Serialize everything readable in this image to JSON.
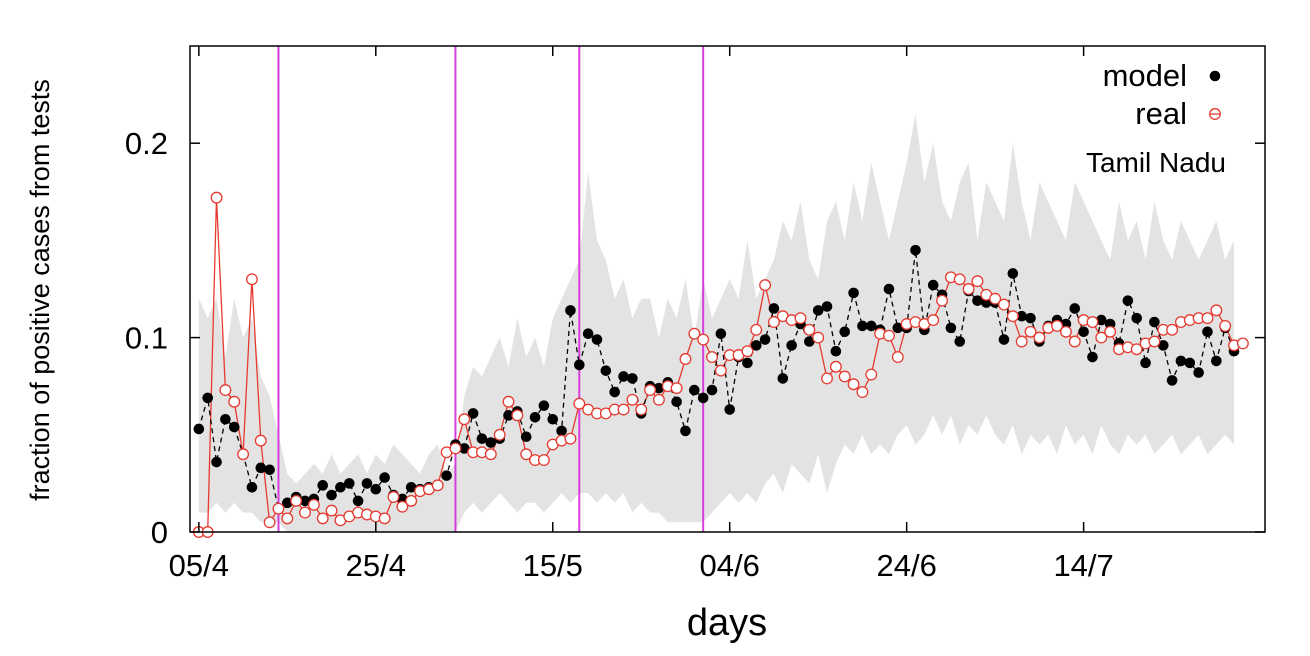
{
  "chart_data": {
    "type": "line",
    "title": "",
    "xlabel": "days",
    "ylabel": "fraction of positive cases from tests",
    "annotation": "Tamil Nadu",
    "legend_position": "top-right",
    "x_tick_labels": [
      "05/4",
      "25/4",
      "15/5",
      "04/6",
      "24/6",
      "14/7"
    ],
    "x_tick_days": [
      0,
      20,
      40,
      60,
      80,
      100
    ],
    "xlim": [
      -1,
      120.5
    ],
    "y_ticks": [
      0,
      0.1,
      0.2
    ],
    "y_tick_labels": [
      "0",
      "0.1",
      "0.2"
    ],
    "ylim": [
      0,
      0.25
    ],
    "grid": false,
    "vertical_markers": [
      9,
      29,
      43,
      57
    ],
    "marker_color": "#d63ddc",
    "band": {
      "name": "model range",
      "color": "#e3e3e3",
      "upper": [
        0.12,
        0.11,
        0.12,
        0.09,
        0.12,
        0.1,
        0.11,
        0.08,
        0.07,
        0.05,
        0.03,
        0.025,
        0.03,
        0.035,
        0.03,
        0.04,
        0.03,
        0.035,
        0.04,
        0.03,
        0.04,
        0.035,
        0.045,
        0.04,
        0.035,
        0.03,
        0.04,
        0.045,
        0.03,
        0.035,
        0.07,
        0.085,
        0.08,
        0.09,
        0.1,
        0.085,
        0.11,
        0.09,
        0.1,
        0.085,
        0.11,
        0.12,
        0.13,
        0.14,
        0.185,
        0.15,
        0.14,
        0.12,
        0.13,
        0.11,
        0.12,
        0.12,
        0.1,
        0.12,
        0.11,
        0.13,
        0.1,
        0.13,
        0.11,
        0.12,
        0.13,
        0.12,
        0.15,
        0.12,
        0.13,
        0.14,
        0.16,
        0.15,
        0.17,
        0.14,
        0.13,
        0.16,
        0.17,
        0.15,
        0.18,
        0.16,
        0.19,
        0.17,
        0.15,
        0.17,
        0.19,
        0.215,
        0.18,
        0.2,
        0.17,
        0.16,
        0.18,
        0.19,
        0.15,
        0.18,
        0.17,
        0.16,
        0.2,
        0.17,
        0.15,
        0.18,
        0.17,
        0.16,
        0.15,
        0.18,
        0.17,
        0.16,
        0.15,
        0.14,
        0.17,
        0.15,
        0.16,
        0.14,
        0.17,
        0.15,
        0.14,
        0.16,
        0.15,
        0.14,
        0.15,
        0.16,
        0.14,
        0.15
      ],
      "lower": [
        0.01,
        0.01,
        0.015,
        0.01,
        0.015,
        0.01,
        0.01,
        0.005,
        0.005,
        0.005,
        0.0,
        0.0,
        0.0,
        0.0,
        0.0,
        0.0,
        0.0,
        0.0,
        0.0,
        0.0,
        0.0,
        0.0,
        0.0,
        0.0,
        0.0,
        0.0,
        0.0,
        0.0,
        0.0,
        0.0,
        0.01,
        0.015,
        0.01,
        0.015,
        0.02,
        0.015,
        0.01,
        0.015,
        0.015,
        0.01,
        0.015,
        0.02,
        0.015,
        0.02,
        0.02,
        0.015,
        0.02,
        0.015,
        0.02,
        0.01,
        0.015,
        0.01,
        0.01,
        0.005,
        0.005,
        0.005,
        0.005,
        0.005,
        0.01,
        0.015,
        0.02,
        0.015,
        0.02,
        0.015,
        0.025,
        0.03,
        0.02,
        0.035,
        0.03,
        0.025,
        0.04,
        0.02,
        0.035,
        0.045,
        0.04,
        0.05,
        0.04,
        0.045,
        0.04,
        0.05,
        0.055,
        0.045,
        0.05,
        0.06,
        0.05,
        0.06,
        0.045,
        0.055,
        0.05,
        0.06,
        0.05,
        0.045,
        0.055,
        0.04,
        0.05,
        0.045,
        0.05,
        0.04,
        0.055,
        0.045,
        0.05,
        0.04,
        0.055,
        0.045,
        0.04,
        0.05,
        0.045,
        0.05,
        0.04,
        0.045,
        0.05,
        0.04,
        0.045,
        0.05,
        0.04,
        0.045,
        0.05,
        0.045
      ]
    },
    "series": [
      {
        "name": "model",
        "color": "#000000",
        "style": "dashed-filled-circles",
        "values": [
          0.053,
          0.069,
          0.036,
          0.058,
          0.054,
          0.04,
          0.023,
          0.033,
          0.032,
          0.012,
          0.015,
          0.018,
          0.016,
          0.017,
          0.024,
          0.019,
          0.023,
          0.025,
          0.016,
          0.025,
          0.022,
          0.028,
          0.019,
          0.017,
          0.023,
          0.022,
          0.023,
          0.024,
          0.029,
          0.045,
          0.043,
          0.061,
          0.048,
          0.046,
          0.048,
          0.06,
          0.062,
          0.049,
          0.059,
          0.065,
          0.058,
          0.052,
          0.114,
          0.086,
          0.102,
          0.099,
          0.083,
          0.072,
          0.08,
          0.079,
          0.061,
          0.075,
          0.074,
          0.077,
          0.067,
          0.052,
          0.073,
          0.069,
          0.073,
          0.102,
          0.063,
          0.09,
          0.087,
          0.096,
          0.099,
          0.115,
          0.079,
          0.096,
          0.107,
          0.098,
          0.114,
          0.116,
          0.093,
          0.103,
          0.123,
          0.106,
          0.106,
          0.104,
          0.125,
          0.105,
          0.105,
          0.145,
          0.104,
          0.127,
          0.122,
          0.105,
          0.098,
          0.124,
          0.119,
          0.118,
          0.118,
          0.099,
          0.133,
          0.111,
          0.11,
          0.098,
          0.106,
          0.109,
          0.107,
          0.115,
          0.103,
          0.09,
          0.109,
          0.107,
          0.097,
          0.119,
          0.11,
          0.087,
          0.108,
          0.096,
          0.078,
          0.088,
          0.087,
          0.082,
          0.103,
          0.088,
          0.105,
          0.093
        ]
      },
      {
        "name": "real",
        "color": "#e53a2f",
        "style": "solid-open-circles",
        "values": [
          0.0,
          0.0,
          0.172,
          0.073,
          0.067,
          0.04,
          0.13,
          0.047,
          0.005,
          0.012,
          0.007,
          0.016,
          0.01,
          0.014,
          0.007,
          0.011,
          0.006,
          0.008,
          0.01,
          0.009,
          0.008,
          0.007,
          0.018,
          0.013,
          0.016,
          0.021,
          0.022,
          0.024,
          0.041,
          0.043,
          0.058,
          0.041,
          0.041,
          0.04,
          0.05,
          0.067,
          0.06,
          0.04,
          0.037,
          0.037,
          0.045,
          0.047,
          0.048,
          0.066,
          0.063,
          0.061,
          0.061,
          0.063,
          0.063,
          0.068,
          0.063,
          0.073,
          0.068,
          0.075,
          0.074,
          0.089,
          0.102,
          0.099,
          0.09,
          0.083,
          0.091,
          0.091,
          0.093,
          0.104,
          0.127,
          0.108,
          0.111,
          0.109,
          0.11,
          0.104,
          0.1,
          0.079,
          0.085,
          0.08,
          0.076,
          0.072,
          0.081,
          0.102,
          0.101,
          0.09,
          0.107,
          0.108,
          0.107,
          0.109,
          0.119,
          0.131,
          0.13,
          0.125,
          0.129,
          0.122,
          0.12,
          0.117,
          0.111,
          0.098,
          0.103,
          0.1,
          0.105,
          0.106,
          0.103,
          0.098,
          0.109,
          0.108,
          0.1,
          0.103,
          0.094,
          0.095,
          0.094,
          0.097,
          0.098,
          0.104,
          0.104,
          0.108,
          0.109,
          0.11,
          0.11,
          0.114,
          0.106,
          0.096,
          0.097
        ]
      }
    ]
  }
}
